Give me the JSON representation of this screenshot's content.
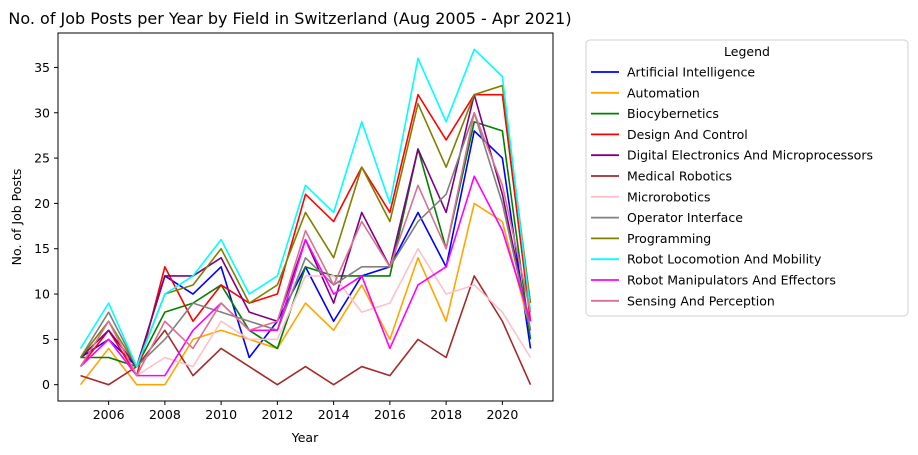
{
  "chart_data": {
    "type": "line",
    "title": "No. of Job Posts per Year by Field in Switzerland (Aug 2005 - Apr 2021)",
    "xlabel": "Year",
    "ylabel": "No. of Job Posts",
    "x": [
      2005,
      2006,
      2007,
      2008,
      2009,
      2010,
      2011,
      2012,
      2013,
      2014,
      2015,
      2016,
      2017,
      2018,
      2019,
      2020,
      2021
    ],
    "xlim": [
      2004.2,
      2021.8
    ],
    "ylim": [
      -1.8,
      38.8
    ],
    "xticks": [
      "2006",
      "2008",
      "2010",
      "2012",
      "2014",
      "2016",
      "2018",
      "2020"
    ],
    "yticks": [
      "0",
      "5",
      "10",
      "15",
      "20",
      "25",
      "30",
      "35"
    ],
    "grid": false,
    "legend": {
      "title": "Legend",
      "placement": "outside-right"
    },
    "series": [
      {
        "name": "Artificial Intelligence",
        "color": "#0000ff",
        "values": [
          3,
          5,
          2,
          12,
          10,
          13,
          3,
          7,
          13,
          7,
          12,
          13,
          19,
          13,
          28,
          25,
          4
        ]
      },
      {
        "name": "Automation",
        "color": "#ffa500",
        "values": [
          0,
          4,
          0,
          0,
          5,
          6,
          5,
          4,
          9,
          6,
          11,
          5,
          14,
          7,
          20,
          18,
          6
        ]
      },
      {
        "name": "Biocybernetics",
        "color": "#008000",
        "values": [
          3,
          3,
          2,
          8,
          9,
          11,
          6,
          4,
          13,
          12,
          12,
          12,
          26,
          15,
          29,
          28,
          5
        ]
      },
      {
        "name": "Design And Control",
        "color": "#ff0000",
        "values": [
          2,
          6,
          1,
          13,
          7,
          11,
          9,
          10,
          21,
          18,
          24,
          19,
          32,
          27,
          32,
          32,
          7
        ]
      },
      {
        "name": "Digital Electronics And Microprocessors",
        "color": "#800080",
        "values": [
          3,
          6,
          2,
          12,
          12,
          14,
          8,
          7,
          16,
          9,
          19,
          13,
          26,
          19,
          32,
          21,
          6
        ]
      },
      {
        "name": "Medical Robotics",
        "color": "#a52a2a",
        "values": [
          1,
          0,
          2,
          6,
          1,
          4,
          2,
          0,
          2,
          0,
          2,
          1,
          5,
          3,
          12,
          7,
          0
        ]
      },
      {
        "name": "Microrobotics",
        "color": "#ffc0cb",
        "values": [
          2,
          5,
          1,
          3,
          2,
          7,
          5,
          5,
          12,
          12,
          8,
          9,
          15,
          10,
          11,
          8,
          3
        ]
      },
      {
        "name": "Operator Interface",
        "color": "#808080",
        "values": [
          3,
          8,
          2,
          5,
          9,
          8,
          7,
          6,
          14,
          11,
          13,
          13,
          18,
          21,
          30,
          20,
          6
        ]
      },
      {
        "name": "Programming",
        "color": "#808000",
        "values": [
          3,
          7,
          2,
          10,
          11,
          15,
          9,
          11,
          19,
          14,
          24,
          18,
          31,
          24,
          32,
          33,
          9
        ]
      },
      {
        "name": "Robot Locomotion And Mobility",
        "color": "#00ffff",
        "values": [
          4,
          9,
          2,
          10,
          12,
          16,
          10,
          12,
          22,
          19,
          29,
          20,
          36,
          29,
          37,
          34,
          8
        ]
      },
      {
        "name": "Robot Manipulators And Effectors",
        "color": "#ff00ff",
        "values": [
          2,
          5,
          1,
          1,
          6,
          9,
          6,
          6,
          16,
          10,
          12,
          4,
          11,
          13,
          23,
          17,
          7
        ]
      },
      {
        "name": "Sensing And Perception",
        "color": "#db7093",
        "values": [
          2,
          7,
          1,
          7,
          4,
          9,
          6,
          7,
          17,
          11,
          18,
          13,
          22,
          15,
          30,
          22,
          8
        ]
      }
    ]
  }
}
